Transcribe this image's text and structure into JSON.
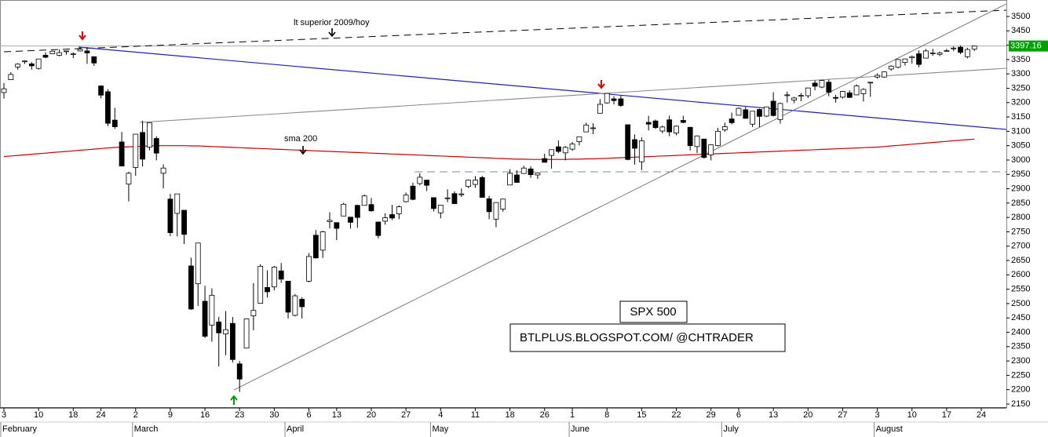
{
  "chart_data": {
    "type": "candlestick",
    "annotations": [
      "lt superior 2009/hoy",
      "sma 200",
      "SPX 500",
      "BTLPLUS.BLOGSPOT.COM/ @CHTRADER"
    ],
    "categories": [
      "3",
      null,
      null,
      null,
      null,
      "10",
      null,
      null,
      null,
      null,
      "18",
      null,
      null,
      null,
      "24",
      null,
      null,
      null,
      null,
      "2",
      null,
      null,
      null,
      null,
      "9",
      null,
      null,
      null,
      null,
      "16",
      null,
      null,
      null,
      null,
      "23",
      null,
      null,
      null,
      null,
      "30",
      null,
      null,
      null,
      null,
      "6",
      null,
      null,
      null,
      "13",
      null,
      null,
      null,
      null,
      "20",
      null,
      null,
      null,
      null,
      "27",
      null,
      null,
      null,
      null,
      "4",
      null,
      null,
      null,
      null,
      "11",
      null,
      null,
      null,
      null,
      "18",
      null,
      null,
      null,
      null,
      "26",
      null,
      null,
      null,
      "1",
      null,
      null,
      null,
      null,
      "8",
      null,
      null,
      null,
      null,
      "15",
      null,
      null,
      null,
      null,
      "22",
      null,
      null,
      null,
      null,
      "29",
      null,
      null,
      null,
      "6",
      null,
      null,
      null,
      null,
      "13",
      null,
      null,
      null,
      null,
      "20",
      null,
      null,
      null,
      null,
      "27",
      null,
      null,
      null,
      null,
      "3",
      null,
      null,
      null,
      null,
      "10",
      null,
      null,
      null,
      null,
      "17",
      null,
      null,
      null,
      null,
      "24"
    ],
    "month_labels": [
      "February",
      null,
      null,
      null,
      null,
      null,
      null,
      null,
      null,
      null,
      null,
      null,
      null,
      null,
      null,
      null,
      null,
      null,
      null,
      "March",
      null,
      null,
      null,
      null,
      null,
      null,
      null,
      null,
      null,
      null,
      null,
      null,
      null,
      null,
      null,
      null,
      null,
      null,
      null,
      null,
      null,
      "April",
      null,
      null,
      null,
      null,
      null,
      null,
      null,
      null,
      null,
      null,
      null,
      null,
      null,
      null,
      null,
      null,
      null,
      null,
      null,
      null,
      "May",
      null,
      null,
      null,
      null,
      null,
      null,
      null,
      null,
      null,
      null,
      null,
      null,
      null,
      null,
      null,
      null,
      null,
      null,
      null,
      "June",
      null,
      null,
      null,
      null,
      null,
      null,
      null,
      null,
      null,
      null,
      null,
      null,
      null,
      null,
      null,
      null,
      null,
      null,
      null,
      null,
      null,
      "July",
      null,
      null,
      null,
      null,
      null,
      null,
      null,
      null,
      null,
      null,
      null,
      null,
      null,
      null,
      null,
      null,
      null,
      null,
      null,
      null,
      null,
      "August",
      null,
      null,
      null,
      null,
      null,
      null,
      null,
      null,
      null,
      null,
      null,
      null,
      null,
      null,
      null
    ],
    "open": [
      3235,
      3280,
      3324,
      3344,
      3335,
      3319,
      3365,
      3370,
      3365,
      3378,
      3369,
      3380,
      3380,
      3360,
      3258,
      3238,
      3139,
      3063,
      2916,
      2974,
      3096,
      3045,
      3075,
      2954,
      2864,
      2814,
      2825,
      2631,
      2569,
      2508,
      2425,
      2436,
      2394,
      2431,
      2290,
      2345,
      2457,
      2501,
      2556,
      2558,
      2614,
      2578,
      2459,
      2515,
      2578,
      2738,
      2686,
      2785,
      2782,
      2805,
      2801,
      2842,
      2842,
      2845,
      2784,
      2787,
      2810,
      2813,
      2855,
      2909,
      2918,
      2930,
      2869,
      2816,
      2868,
      2883,
      2879,
      2908,
      2915,
      2939,
      2865,
      2794,
      2829,
      2913,
      2948,
      2953,
      2969,
      2948,
      3005,
      3016,
      3046,
      3025,
      3038,
      3064,
      3098,
      3112,
      3163,
      3199,
      3213,
      3213,
      3123,
      3071,
      2994,
      3131,
      3136,
      3101,
      3140,
      3094,
      3138,
      3114,
      3047,
      3073,
      3018,
      3050,
      3105,
      3143,
      3156,
      3175,
      3125,
      3176,
      3153,
      3205,
      3141,
      3225,
      3209,
      3224,
      3224,
      3268,
      3254,
      3271,
      3218,
      3219,
      3234,
      3227,
      3231,
      3270,
      3289,
      3289,
      3317,
      3323,
      3340,
      3356,
      3370,
      3355,
      3372,
      3368,
      3380,
      3388,
      3393,
      3360,
      3386,
      null
    ],
    "high": [
      3268,
      3306,
      3337,
      3347,
      3341,
      3352,
      3375,
      3381,
      3385,
      3381,
      3375,
      3394,
      3393,
      3360,
      3260,
      3247,
      3182,
      3098,
      2959,
      3090,
      3137,
      3130,
      3083,
      2985,
      2882,
      2882,
      2825,
      2660,
      2711,
      2562,
      2553,
      2454,
      2474,
      2453,
      2300,
      2449,
      2571,
      2637,
      2616,
      2631,
      2641,
      2578,
      2533,
      2522,
      2676,
      2756,
      2754,
      2818,
      2782,
      2851,
      2801,
      2844,
      2880,
      2868,
      2785,
      2815,
      2844,
      2842,
      2887,
      2921,
      2954,
      2930,
      2869,
      2844,
      2898,
      2891,
      2901,
      2932,
      2944,
      2945,
      2875,
      2852,
      2865,
      2968,
      2964,
      2980,
      2978,
      2957,
      3022,
      3036,
      3068,
      3049,
      3063,
      3081,
      3130,
      3128,
      3212,
      3233,
      3222,
      3224,
      3123,
      3089,
      3079,
      3154,
      3141,
      3120,
      3155,
      3120,
      3154,
      3115,
      3086,
      3074,
      3054,
      3112,
      3130,
      3165,
      3183,
      3185,
      3170,
      3179,
      3186,
      3236,
      3200,
      3238,
      3220,
      3233,
      3252,
      3277,
      3279,
      3280,
      3227,
      3241,
      3243,
      3264,
      3250,
      3272,
      3302,
      3307,
      3330,
      3352,
      3352,
      3364,
      3382,
      3387,
      3387,
      3378,
      3387,
      3396,
      3399,
      3391,
      3399,
      null
    ],
    "low": [
      3214,
      3280,
      3315,
      3335,
      3315,
      3315,
      3355,
      3369,
      3361,
      3367,
      3355,
      3378,
      3335,
      3328,
      3215,
      3118,
      3108,
      2978,
      2856,
      2945,
      2977,
      3034,
      2999,
      2901,
      2735,
      2734,
      2707,
      2478,
      2492,
      2380,
      2367,
      2281,
      2320,
      2295,
      2192,
      2345,
      2407,
      2500,
      2521,
      2546,
      2572,
      2448,
      2455,
      2448,
      2574,
      2657,
      2659,
      2762,
      2721,
      2805,
      2761,
      2764,
      2842,
      2820,
      2727,
      2775,
      2791,
      2794,
      2852,
      2860,
      2912,
      2892,
      2821,
      2797,
      2853,
      2847,
      2871,
      2902,
      2903,
      2869,
      2794,
      2766,
      2820,
      2913,
      2922,
      2953,
      2938,
      2934,
      2992,
      2970,
      3024,
      2999,
      3032,
      3051,
      3098,
      3090,
      3163,
      3196,
      3194,
      3185,
      2999,
      2984,
      2965,
      3103,
      3108,
      3093,
      3083,
      3086,
      3128,
      3033,
      3024,
      3005,
      2999,
      3047,
      3098,
      3124,
      3155,
      3144,
      3115,
      3115,
      3150,
      3152,
      3127,
      3200,
      3198,
      3205,
      3216,
      3243,
      3250,
      3222,
      3200,
      3214,
      3216,
      3226,
      3204,
      3220,
      3284,
      3287,
      3311,
      3319,
      3329,
      3336,
      3323,
      3355,
      3363,
      3362,
      3379,
      3379,
      3369,
      3354,
      3380,
      null
    ],
    "close": [
      3248,
      3298,
      3334,
      3345,
      3328,
      3352,
      3358,
      3379,
      3374,
      3380,
      3370,
      3386,
      3373,
      3338,
      3226,
      3128,
      3116,
      2979,
      2954,
      3090,
      3003,
      3130,
      3024,
      2972,
      2747,
      2882,
      2741,
      2481,
      2711,
      2386,
      2529,
      2398,
      2409,
      2305,
      2237,
      2447,
      2476,
      2630,
      2541,
      2627,
      2585,
      2470,
      2527,
      2489,
      2664,
      2659,
      2750,
      2790,
      2762,
      2846,
      2783,
      2800,
      2875,
      2823,
      2737,
      2799,
      2798,
      2837,
      2878,
      2863,
      2940,
      2912,
      2831,
      2843,
      2868,
      2848,
      2882,
      2930,
      2930,
      2870,
      2820,
      2852,
      2864,
      2954,
      2922,
      2972,
      2949,
      2955,
      2992,
      3036,
      3030,
      3044,
      3056,
      3081,
      3122,
      3112,
      3194,
      3232,
      3207,
      3190,
      3002,
      3041,
      3067,
      3125,
      3113,
      3115,
      3098,
      3118,
      3131,
      3050,
      3084,
      3009,
      3053,
      3100,
      3116,
      3130,
      3180,
      3145,
      3170,
      3152,
      3185,
      3155,
      3197,
      3227,
      3216,
      3225,
      3251,
      3257,
      3277,
      3236,
      3215,
      3239,
      3218,
      3258,
      3246,
      3271,
      3295,
      3307,
      3327,
      3350,
      3352,
      3360,
      3333,
      3380,
      3373,
      3373,
      3381,
      3390,
      3375,
      3385,
      3397,
      null
    ],
    "overlay": {
      "color": "#cc0000",
      "values": [
        3012,
        3014,
        3016,
        3018,
        3020,
        3022,
        3024,
        3026,
        3028,
        3030,
        3032,
        3034,
        3036,
        3038,
        3040,
        3042,
        3044,
        3045,
        3046,
        3047,
        3048,
        3049,
        3050,
        3050,
        3050,
        3050,
        3050,
        3049,
        3049,
        3048,
        3047,
        3046,
        3045,
        3044,
        3043,
        3042,
        3041,
        3040,
        3039,
        3038,
        3037,
        3036,
        3035,
        3034,
        3033,
        3032,
        3031,
        3030,
        3029,
        3028,
        3027,
        3026,
        3025,
        3024,
        3023,
        3022,
        3021,
        3020,
        3019,
        3018,
        3017,
        3016,
        3015,
        3014,
        3013,
        3012,
        3011,
        3010,
        3009,
        3008,
        3007,
        3006,
        3005,
        3004,
        3003,
        3003,
        3002,
        3002,
        3002,
        3002,
        3002,
        3002,
        3003,
        3003,
        3004,
        3004,
        3005,
        3006,
        3007,
        3008,
        3009,
        3010,
        3011,
        3012,
        3013,
        3014,
        3015,
        3016,
        3017,
        3018,
        3019,
        3020,
        3021,
        3022,
        3023,
        3024,
        3025,
        3026,
        3027,
        3028,
        3029,
        3030,
        3031,
        3032,
        3033,
        3034,
        3035,
        3036,
        3037,
        3038,
        3039,
        3040,
        3041,
        3042,
        3043,
        3044,
        3045,
        3047,
        3049,
        3051,
        3053,
        3055,
        3057,
        3059,
        3061,
        3063,
        3065,
        3067,
        3069,
        3071,
        3073,
        null
      ]
    },
    "last_price": {
      "value": 3397.16,
      "label": "3397.16",
      "color": "#00a000"
    },
    "ylim": [
      2150,
      3500
    ],
    "yticks": [
      2150,
      2200,
      2250,
      2300,
      2350,
      2400,
      2450,
      2500,
      2550,
      2600,
      2650,
      2700,
      2750,
      2800,
      2850,
      2900,
      2950,
      3000,
      3050,
      3100,
      3150,
      3200,
      3250,
      3300,
      3350,
      3400,
      3450,
      3500
    ]
  }
}
